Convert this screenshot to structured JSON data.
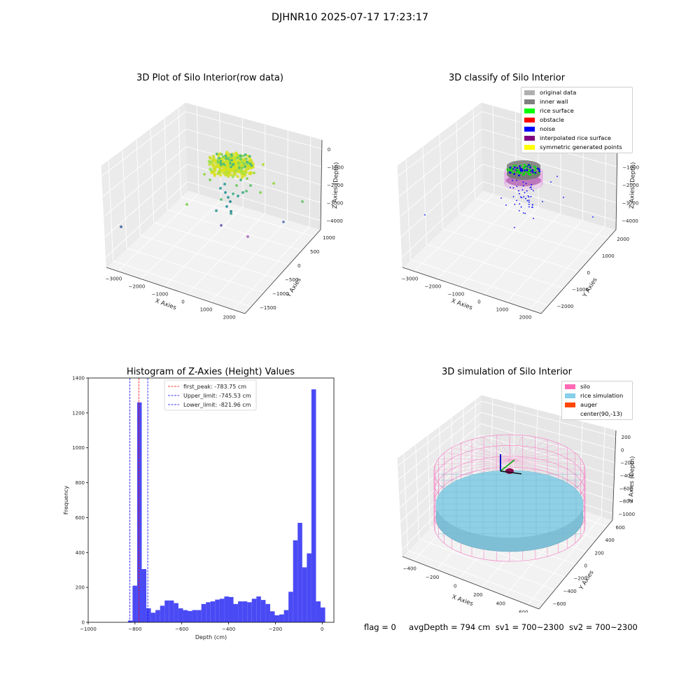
{
  "suptitle": "DJHNR10 2025-07-17 17:23:17",
  "panels": {
    "raw": {
      "title": "3D Plot of Silo Interior(row data)",
      "xlabel": "X Axies",
      "ylabel": "Y Axies",
      "zlabel": "Z Axies (Depth)",
      "xticks": [
        "−3000",
        "−2000",
        "−1000",
        "0",
        "1000",
        "2000"
      ],
      "yticks": [
        "−1500",
        "−1000",
        "−500",
        "0",
        "500",
        "1000"
      ],
      "zticks": [
        "0",
        "−1000",
        "−2000",
        "−3000",
        "−4000"
      ]
    },
    "classify": {
      "title": "3D classify of Silo Interior",
      "xlabel": "X Axies",
      "ylabel": "Y Axies",
      "zlabel": "Z Axies (Depth)",
      "xticks": [
        "−3000",
        "−2000",
        "−1000",
        "0",
        "1000",
        "2000"
      ],
      "yticks": [
        "−2000",
        "−1000",
        "0",
        "1000",
        "2000"
      ],
      "zticks": [
        "0",
        "−1000",
        "−2000",
        "−3000",
        "−4000"
      ],
      "legend": [
        {
          "label": "original data",
          "color": "#b0b0b0"
        },
        {
          "label": "inner wall",
          "color": "#808080"
        },
        {
          "label": "rice surface",
          "color": "#00ff00"
        },
        {
          "label": "obstacle",
          "color": "#ff0000"
        },
        {
          "label": "noise",
          "color": "#0000ff"
        },
        {
          "label": "interpolated rice surface",
          "color": "#800080"
        },
        {
          "label": "symmetric generated points",
          "color": "#ffff00"
        }
      ]
    },
    "simulation": {
      "title": "3D simulation of Silo Interior",
      "xlabel": "X Axies",
      "ylabel": "Y Axies",
      "zlabel": "Z Axies (Depth)",
      "xticks": [
        "−400",
        "−200",
        "0",
        "200",
        "400",
        "600"
      ],
      "yticks": [
        "−600",
        "−400",
        "−200",
        "0",
        "200",
        "400",
        "600"
      ],
      "zticks": [
        "200",
        "0",
        "−200",
        "−400",
        "−600",
        "−800",
        "−1000"
      ],
      "legend": [
        {
          "label": "silo",
          "color": "#ff69b4"
        },
        {
          "label": "rice simulation",
          "color": "#87ceeb"
        },
        {
          "label": "auger",
          "color": "#ff4500"
        },
        {
          "label": "center(90,-13)",
          "color": "none"
        }
      ]
    }
  },
  "chart_data": {
    "type": "bar",
    "title": "Histogram of Z-Axies (Height) Values",
    "xlabel": "Depth (cm)",
    "ylabel": "Frequency",
    "xlim": [
      -1000,
      50
    ],
    "ylim": [
      0,
      1400
    ],
    "xticks": [
      -1000,
      -800,
      -600,
      -400,
      -200,
      0
    ],
    "yticks": [
      0,
      200,
      400,
      600,
      800,
      1000,
      1200,
      1400
    ],
    "bar_color": "#4a4af5",
    "bin_edges_start": -830,
    "bin_width": 19.6,
    "values": [
      10,
      210,
      1260,
      305,
      80,
      55,
      70,
      95,
      125,
      125,
      110,
      80,
      70,
      65,
      70,
      70,
      105,
      115,
      120,
      130,
      135,
      148,
      145,
      105,
      120,
      120,
      115,
      135,
      148,
      128,
      105,
      63,
      40,
      45,
      70,
      175,
      470,
      570,
      315,
      395,
      1335,
      120,
      85
    ],
    "vlines": [
      {
        "label": "first_peak: -783.75 cm",
        "x": -783.75,
        "color": "#ff0000"
      },
      {
        "label": "Upper_limit: -745.53 cm",
        "x": -745.53,
        "color": "#0000ff"
      },
      {
        "label": "Lower_limit: -821.96 cm",
        "x": -821.96,
        "color": "#0000ff"
      }
    ],
    "legend_position": "upper-center"
  },
  "footer": {
    "flag": "flag = 0",
    "avg_depth": "avgDepth = 794 cm",
    "sv1": "sv1 = 700~2300",
    "sv2": "sv2 = 700~2300"
  }
}
